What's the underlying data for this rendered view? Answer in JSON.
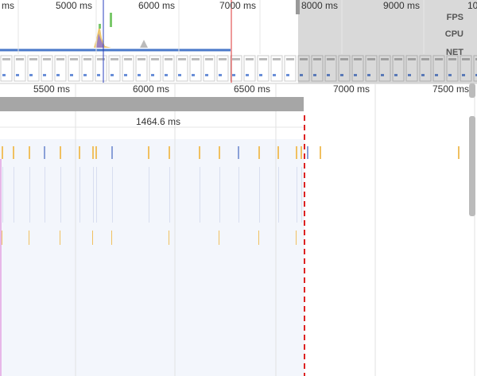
{
  "overview": {
    "ticks": [
      "ms",
      "5000 ms",
      "6000 ms",
      "7000 ms",
      "8000 ms",
      "9000 ms",
      "10"
    ],
    "tracks": [
      "FPS",
      "CPU",
      "NET"
    ]
  },
  "timeline": {
    "ticks": [
      "5500 ms",
      "6000 ms",
      "6500 ms",
      "7000 ms",
      "7500 ms"
    ],
    "selection_duration": "1464.6 ms"
  }
}
